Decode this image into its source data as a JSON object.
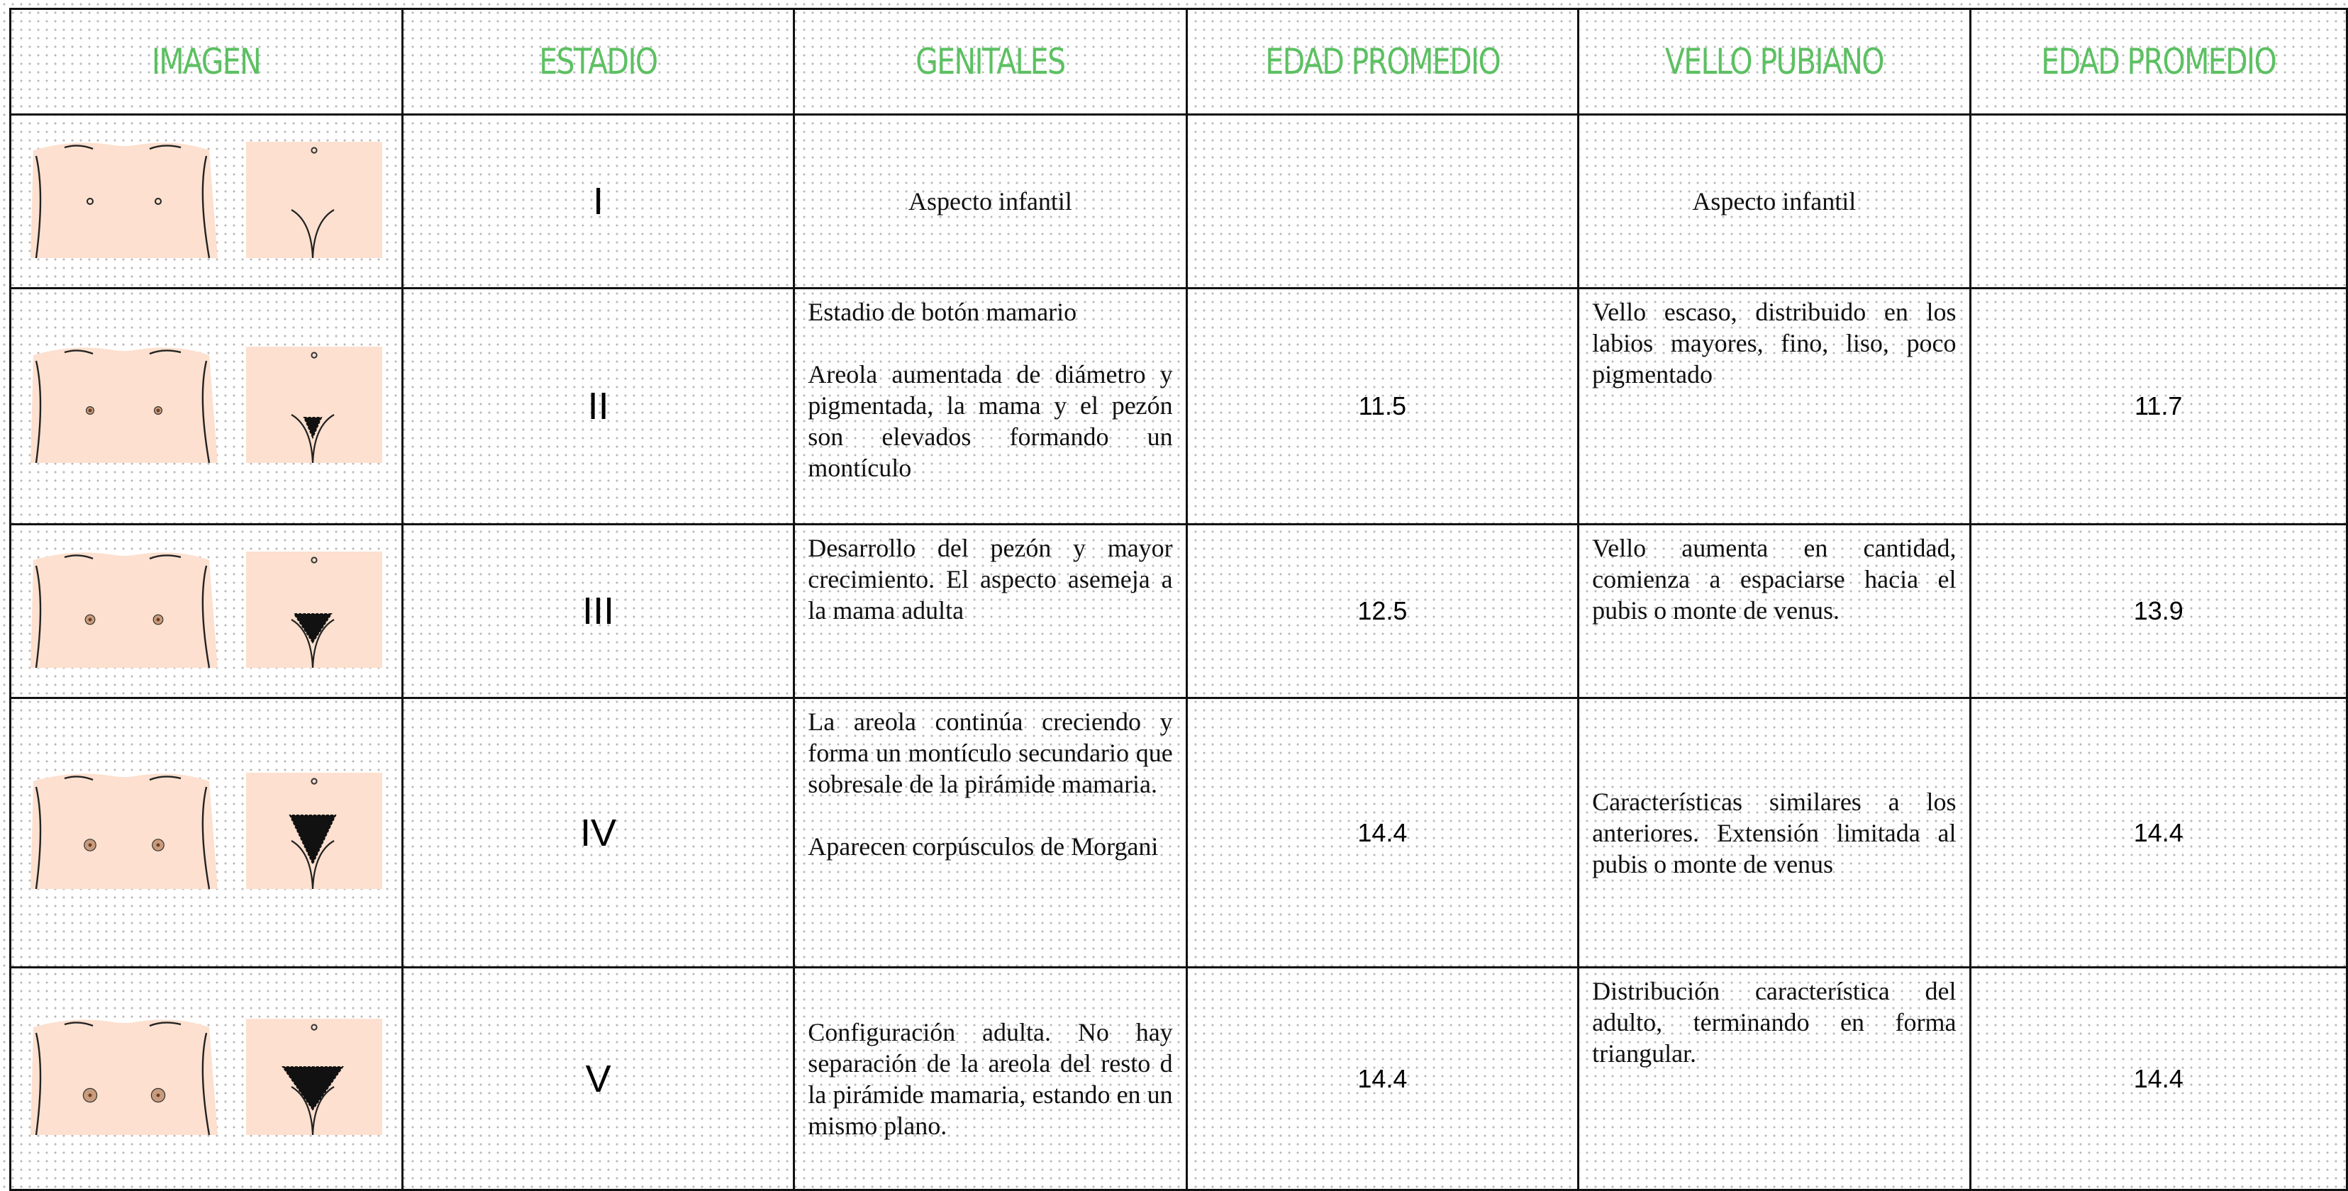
{
  "table": {
    "header": [
      "IMAGEN",
      "ESTADIO",
      "GENITALES",
      "EDAD PROMEDIO",
      "VELLO PUBIANO",
      "EDAD PROMEDIO"
    ],
    "rows": [
      {
        "estadio": "I",
        "genitales": [
          "Aspecto infantil"
        ],
        "vello": [
          "Aspecto infantil"
        ]
      },
      {
        "estadio": "II",
        "genitales": [
          "Estadio de botón mamario",
          "Areola aumentada de diámetro y pigmentada, la mama y el pezón son elevados formando un montículo"
        ],
        "edad_genitales": "11.5",
        "vello": [
          "Vello escaso, distribuido en los labios mayores, fino, liso, poco pigmentado"
        ],
        "edad_vello": "11.7"
      },
      {
        "estadio": "III",
        "genitales": [
          "Desarrollo del pezón y mayor crecimiento. El aspecto asemeja a la mama adulta"
        ],
        "edad_genitales": "12.5",
        "vello": [
          "Vello aumenta en cantidad, comienza a espaciarse hacia el pubis o monte de venus."
        ],
        "edad_vello": "13.9"
      },
      {
        "estadio": "IV",
        "genitales": [
          "La areola continúa creciendo y forma un montículo secundario que sobresale de la pirámide mamaria.",
          "Aparecen corpúsculos de Morgani"
        ],
        "edad_genitales": "14.4",
        "vello": [
          "Características similares a los anteriores. Extensión limitada al pubis o monte de venus"
        ],
        "edad_vello": "14.4"
      },
      {
        "estadio": "V",
        "genitales": [
          "Configuración adulta. No hay separación de la areola del resto d la pirámide mamaria, estando en un mismo plano."
        ],
        "edad_genitales": "14.4",
        "vello": [
          "Distribución característica del adulto, terminando en forma triangular."
        ],
        "edad_vello": "14.4"
      }
    ]
  }
}
